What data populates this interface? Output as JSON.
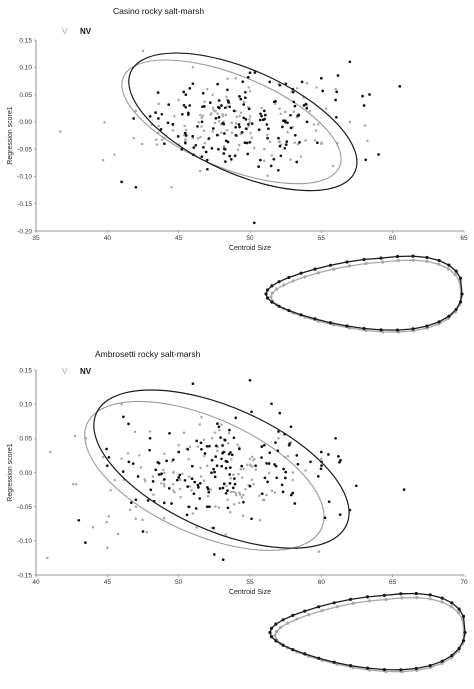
{
  "chart_data": [
    {
      "type": "scatter",
      "title": "Casino rocky salt-marsh",
      "xlabel": "Centroid Size",
      "ylabel": "Regression score1",
      "xlim": [
        35,
        65
      ],
      "ylim": [
        -0.2,
        0.15
      ],
      "xticks": [
        "35",
        "40",
        "45",
        "50",
        "55",
        "60",
        "65"
      ],
      "yticks": [
        "0.15",
        "0.10",
        "0.05",
        "0.00",
        "-0.05",
        "-0.10",
        "-0.15",
        "-0.20"
      ],
      "legend_placement": "top-left",
      "grid": false,
      "series": [
        {
          "name": "V",
          "color": "#a8a8a8",
          "ellipse": {
            "cx": 48.7,
            "cy": 0.0,
            "rx": 8.2,
            "ry": 0.085,
            "angle_deg": -14
          },
          "n_points": 140,
          "points": [
            [
              40.5,
              -0.06
            ],
            [
              42,
              0.02
            ],
            [
              44,
              -0.03
            ],
            [
              45,
              0.04
            ],
            [
              46.5,
              -0.09
            ],
            [
              47,
              0.06
            ],
            [
              48,
              -0.02
            ],
            [
              49,
              0.08
            ],
            [
              50,
              0.01
            ],
            [
              51,
              -0.05
            ],
            [
              52,
              0.07
            ],
            [
              53,
              -0.01
            ],
            [
              54,
              0.03
            ],
            [
              55,
              -0.04
            ],
            [
              56,
              0.06
            ],
            [
              42.5,
              0.13
            ],
            [
              39.7,
              -0.07
            ],
            [
              57,
              0.0
            ],
            [
              46,
              0.1
            ],
            [
              44.5,
              -0.12
            ]
          ]
        },
        {
          "name": "NV",
          "color": "#111111",
          "ellipse": {
            "cx": 49.5,
            "cy": 0.0,
            "rx": 8.6,
            "ry": 0.095,
            "angle_deg": -15
          },
          "n_points": 160,
          "points": [
            [
              41,
              -0.11
            ],
            [
              43,
              0.01
            ],
            [
              44,
              -0.04
            ],
            [
              45.5,
              0.05
            ],
            [
              47,
              -0.07
            ],
            [
              48,
              0.03
            ],
            [
              49,
              -0.01
            ],
            [
              50,
              0.09
            ],
            [
              51,
              0.02
            ],
            [
              52,
              -0.03
            ],
            [
              53,
              0.06
            ],
            [
              54,
              0.0
            ],
            [
              55,
              0.08
            ],
            [
              56,
              0.04
            ],
            [
              58,
              0.03
            ],
            [
              60.5,
              0.065
            ],
            [
              50.3,
              -0.185
            ],
            [
              42,
              -0.12
            ],
            [
              57,
              0.11
            ],
            [
              46,
              0.07
            ]
          ]
        }
      ],
      "inset_outline": true
    },
    {
      "type": "scatter",
      "title": "Ambrosetti rocky salt-marsh",
      "xlabel": "Centroid Size",
      "ylabel": "Regression score1",
      "xlim": [
        40,
        70
      ],
      "ylim": [
        -0.15,
        0.15
      ],
      "xticks": [
        "40",
        "45",
        "50",
        "55",
        "60",
        "65",
        "70"
      ],
      "yticks": [
        "0.15",
        "0.10",
        "0.05",
        "0.00",
        "-0.05",
        "-0.10",
        "-0.15"
      ],
      "legend_placement": "top-left",
      "grid": false,
      "series": [
        {
          "name": "V",
          "color": "#a8a8a8",
          "ellipse": {
            "cx": 51.8,
            "cy": -0.005,
            "rx": 9.0,
            "ry": 0.085,
            "angle_deg": -15
          },
          "n_points": 140,
          "points": [
            [
              41,
              0.03
            ],
            [
              44,
              -0.08
            ],
            [
              46,
              0.02
            ],
            [
              47,
              -0.05
            ],
            [
              48,
              0.06
            ],
            [
              49,
              -0.02
            ],
            [
              50,
              0.04
            ],
            [
              51,
              -0.06
            ],
            [
              52,
              0.01
            ],
            [
              53,
              0.07
            ],
            [
              54,
              -0.03
            ],
            [
              55,
              0.02
            ],
            [
              56,
              -0.04
            ],
            [
              57,
              0.05
            ],
            [
              40.8,
              -0.125
            ],
            [
              58,
              0.0
            ],
            [
              46,
              0.1
            ],
            [
              45,
              -0.11
            ],
            [
              60,
              0.02
            ],
            [
              43.5,
              0.05
            ]
          ]
        },
        {
          "name": "NV",
          "color": "#111111",
          "ellipse": {
            "cx": 53.0,
            "cy": 0.005,
            "rx": 9.6,
            "ry": 0.09,
            "angle_deg": -15
          },
          "n_points": 160,
          "points": [
            [
              43,
              -0.07
            ],
            [
              45,
              0.01
            ],
            [
              47,
              -0.04
            ],
            [
              48,
              0.05
            ],
            [
              49,
              -0.01
            ],
            [
              50,
              0.03
            ],
            [
              51,
              0.13
            ],
            [
              52,
              -0.05
            ],
            [
              53,
              0.02
            ],
            [
              54,
              0.08
            ],
            [
              55,
              -0.02
            ],
            [
              56,
              0.04
            ],
            [
              57,
              0.06
            ],
            [
              58,
              -0.03
            ],
            [
              60,
              0.03
            ],
            [
              62,
              -0.055
            ],
            [
              55,
              0.135
            ],
            [
              65.8,
              -0.025
            ],
            [
              52.5,
              -0.12
            ],
            [
              61,
              0.05
            ]
          ]
        }
      ],
      "inset_outline": true
    }
  ]
}
